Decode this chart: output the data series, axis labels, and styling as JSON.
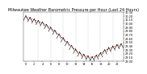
{
  "title": "Milwaukee Weather Barometric Pressure per Hour (Last 24 Hours)",
  "hours": [
    0,
    1,
    2,
    3,
    4,
    5,
    6,
    7,
    8,
    9,
    10,
    11,
    12,
    13,
    14,
    15,
    16,
    17,
    18,
    19,
    20,
    21,
    22,
    23
  ],
  "pressure": [
    30.18,
    30.14,
    30.1,
    30.06,
    30.02,
    29.95,
    29.88,
    29.8,
    29.7,
    29.6,
    29.5,
    29.4,
    29.3,
    29.22,
    29.16,
    29.12,
    29.1,
    29.14,
    29.2,
    29.28,
    29.34,
    29.38,
    29.42,
    29.44
  ],
  "line_color": "#cc0000",
  "marker_color": "#000000",
  "grid_color": "#aaaaaa",
  "bg_color": "#ffffff",
  "text_color": "#000000",
  "ylim_min": 29.0,
  "ylim_max": 30.3,
  "ytick_step": 0.1,
  "title_fontsize": 3.5,
  "tick_fontsize": 2.5,
  "label_fontsize": 3.0,
  "grid_hours": [
    3,
    6,
    9,
    12,
    15,
    18,
    21
  ]
}
